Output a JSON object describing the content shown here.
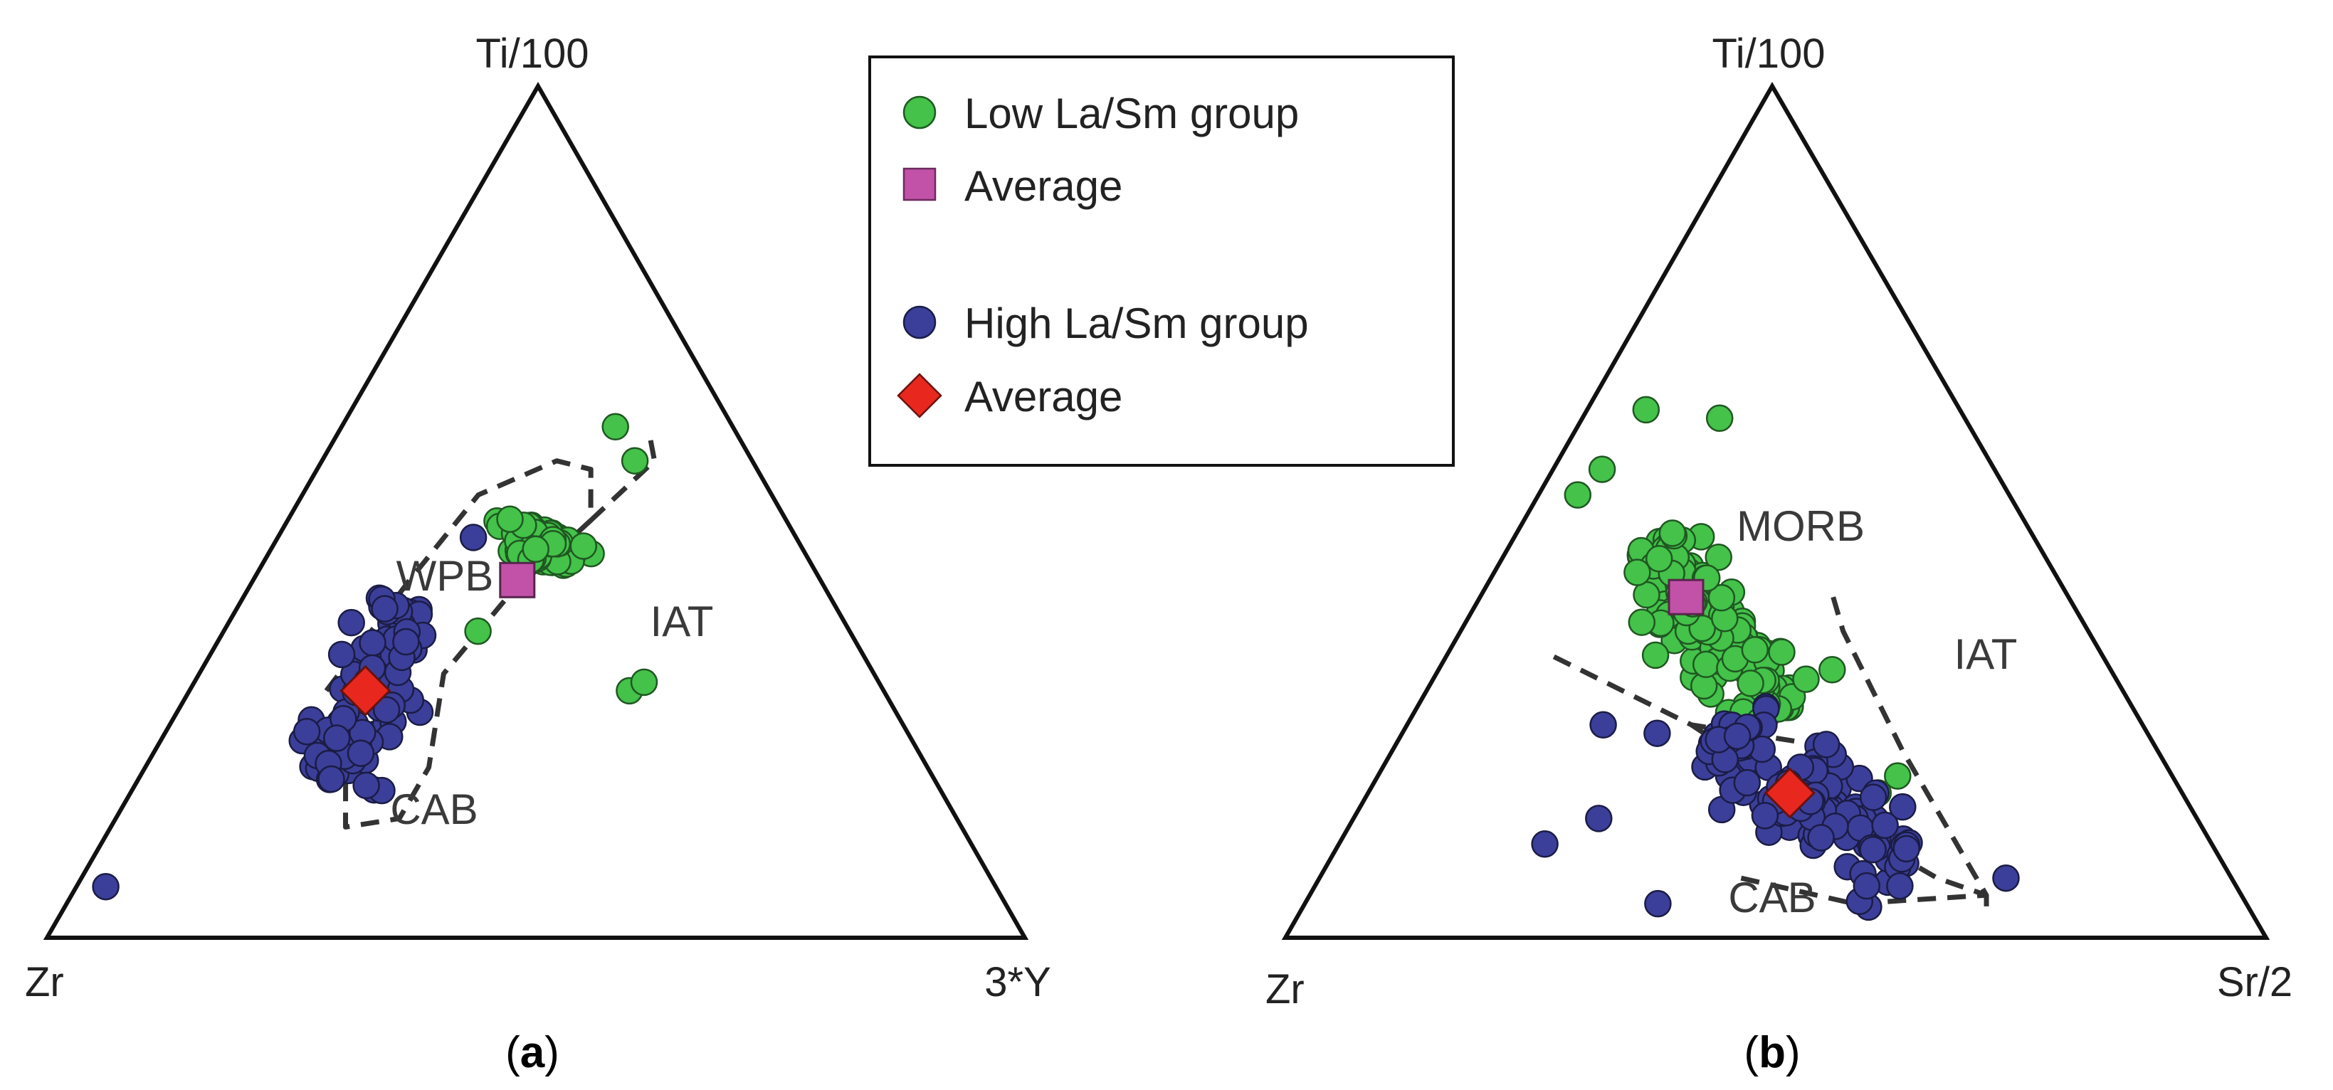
{
  "chart_data": [
    {
      "type": "ternary-scatter",
      "panel": "a",
      "caption_letter": "a",
      "vertices": {
        "top": "Ti/100",
        "left": "Zr",
        "right": "3*Y"
      },
      "field_labels": [
        "WPB",
        "IAT",
        "CAB"
      ],
      "series": [
        {
          "name": "Low La/Sm group",
          "marker": "circle",
          "color": "#44c24a",
          "points_count": 110,
          "cluster": {
            "top": [
              0.42,
              0.52
            ],
            "left": [
              0.22,
              0.33
            ],
            "right": [
              0.24,
              0.33
            ],
            "span": 0.05,
            "spread": 0.018
          },
          "extra_points": [
            {
              "top": 0.56,
              "left": 0.12,
              "right": 0.32
            },
            {
              "top": 0.6,
              "left": 0.12,
              "right": 0.28
            },
            {
              "top": 0.36,
              "left": 0.38,
              "right": 0.26
            },
            {
              "top": 0.29,
              "left": 0.26,
              "right": 0.45
            },
            {
              "top": 0.3,
              "left": 0.24,
              "right": 0.46
            }
          ]
        },
        {
          "name": "High La/Sm group",
          "marker": "circle",
          "color": "#3b3f99",
          "points_count": 95,
          "cluster": {
            "top": [
              0.18,
              0.4
            ],
            "left": [
              0.62,
              0.43
            ],
            "right": [
              0.2,
              0.17
            ],
            "span": 0.035,
            "spread": 0.02
          },
          "extra_points": [
            {
              "top": 0.06,
              "left": 0.91,
              "right": 0.03
            },
            {
              "top": 0.47,
              "left": 0.33,
              "right": 0.2
            }
          ]
        },
        {
          "name": "Low La/Sm group average",
          "marker": "square",
          "color": "#c152a8",
          "point": {
            "top": 0.42,
            "left": 0.31,
            "right": 0.27
          }
        },
        {
          "name": "High La/Sm group average",
          "marker": "diamond",
          "color": "#e8281e",
          "point": {
            "top": 0.29,
            "left": 0.53,
            "right": 0.18
          }
        }
      ],
      "field_boundaries": {
        "WPB": [
          {
            "top": 0.29,
            "left": 0.57,
            "right": 0.14
          },
          {
            "top": 0.42,
            "left": 0.42,
            "right": 0.16
          },
          {
            "top": 0.52,
            "left": 0.3,
            "right": 0.18
          },
          {
            "top": 0.56,
            "left": 0.2,
            "right": 0.24
          },
          {
            "top": 0.55,
            "left": 0.17,
            "right": 0.28
          },
          {
            "top": 0.49,
            "left": 0.2,
            "right": 0.31
          },
          {
            "top": 0.4,
            "left": 0.33,
            "right": 0.27
          },
          {
            "top": 0.31,
            "left": 0.44,
            "right": 0.25
          },
          {
            "top": 0.2,
            "left": 0.51,
            "right": 0.29
          },
          {
            "top": 0.14,
            "left": 0.57,
            "right": 0.29
          },
          {
            "top": 0.13,
            "left": 0.63,
            "right": 0.24
          },
          {
            "top": 0.19,
            "left": 0.6,
            "right": 0.21
          }
        ],
        "IAT": [
          {
            "top": 0.49,
            "left": 0.2,
            "right": 0.31
          },
          {
            "top": 0.56,
            "left": 0.1,
            "right": 0.34
          },
          {
            "top": 0.59,
            "left": 0.09,
            "right": 0.32
          }
        ]
      }
    },
    {
      "type": "ternary-scatter",
      "panel": "b",
      "caption_letter": "b",
      "vertices": {
        "top": "Ti/100",
        "left": "Zr",
        "right": "Sr/2"
      },
      "field_labels": [
        "MORB",
        "IAT",
        "CAB"
      ],
      "series": [
        {
          "name": "Low La/Sm group",
          "marker": "circle",
          "color": "#44c24a",
          "points_count": 150,
          "cluster": {
            "top": [
              0.46,
              0.26
            ],
            "left": [
              0.4,
              0.36
            ],
            "right": [
              0.14,
              0.38
            ],
            "span": 0.05,
            "spread": 0.022
          },
          "extra_points": [
            {
              "top": 0.62,
              "left": 0.32,
              "right": 0.06
            },
            {
              "top": 0.61,
              "left": 0.25,
              "right": 0.14
            },
            {
              "top": 0.52,
              "left": 0.44,
              "right": 0.04
            },
            {
              "top": 0.55,
              "left": 0.4,
              "right": 0.05
            },
            {
              "top": 0.2,
              "left": 0.36,
              "right": 0.44
            },
            {
              "top": 0.17,
              "left": 0.31,
              "right": 0.52
            },
            {
              "top": 0.19,
              "left": 0.28,
              "right": 0.53
            }
          ]
        },
        {
          "name": "High La/Sm group",
          "marker": "circle",
          "color": "#3b3f99",
          "points_count": 130,
          "cluster": {
            "top": [
              0.24,
              0.08
            ],
            "left": [
              0.44,
              0.32
            ],
            "right": [
              0.32,
              0.6
            ],
            "span": 0.06,
            "spread": 0.025
          },
          "extra_points": [
            {
              "top": 0.25,
              "left": 0.55,
              "right": 0.2
            },
            {
              "top": 0.24,
              "left": 0.5,
              "right": 0.26
            },
            {
              "top": 0.14,
              "left": 0.61,
              "right": 0.25
            },
            {
              "top": 0.11,
              "left": 0.68,
              "right": 0.21
            },
            {
              "top": 0.04,
              "left": 0.6,
              "right": 0.36
            },
            {
              "top": 0.07,
              "left": 0.23,
              "right": 0.7
            }
          ]
        },
        {
          "name": "Low La/Sm group average",
          "marker": "square",
          "color": "#c152a8",
          "point": {
            "top": 0.4,
            "left": 0.39,
            "right": 0.21
          }
        },
        {
          "name": "High La/Sm group average",
          "marker": "diamond",
          "color": "#e8281e",
          "point": {
            "top": 0.17,
            "left": 0.4,
            "right": 0.43
          }
        }
      ],
      "field_boundaries": {
        "MORB_IAT": [
          {
            "top": 0.33,
            "left": 0.56,
            "right": 0.11
          },
          {
            "top": 0.25,
            "left": 0.46,
            "right": 0.29
          },
          {
            "top": 0.23,
            "left": 0.36,
            "right": 0.41
          }
        ],
        "IAT": [
          {
            "top": 0.4,
            "left": 0.24,
            "right": 0.36
          },
          {
            "top": 0.36,
            "left": 0.25,
            "right": 0.39
          },
          {
            "top": 0.22,
            "left": 0.26,
            "right": 0.52
          },
          {
            "top": 0.05,
            "left": 0.26,
            "right": 0.69
          },
          {
            "top": 0.03,
            "left": 0.27,
            "right": 0.7
          }
        ],
        "CAB": [
          {
            "top": 0.25,
            "left": 0.46,
            "right": 0.29
          },
          {
            "top": 0.15,
            "left": 0.38,
            "right": 0.47
          },
          {
            "top": 0.07,
            "left": 0.3,
            "right": 0.63
          },
          {
            "top": 0.05,
            "left": 0.26,
            "right": 0.69
          }
        ],
        "CAB_lower": [
          {
            "top": 0.07,
            "left": 0.5,
            "right": 0.43
          },
          {
            "top": 0.04,
            "left": 0.4,
            "right": 0.56
          },
          {
            "top": 0.05,
            "left": 0.26,
            "right": 0.69
          }
        ]
      }
    }
  ],
  "legend": {
    "items": [
      {
        "label": "Low La/Sm group",
        "marker": "circle",
        "color": "#44c24a"
      },
      {
        "label": "Average",
        "marker": "square",
        "color": "#c152a8"
      },
      {
        "label": "High La/Sm group",
        "marker": "circle",
        "color": "#3b3f99"
      },
      {
        "label": "Average",
        "marker": "diamond",
        "color": "#e8281e"
      }
    ]
  }
}
